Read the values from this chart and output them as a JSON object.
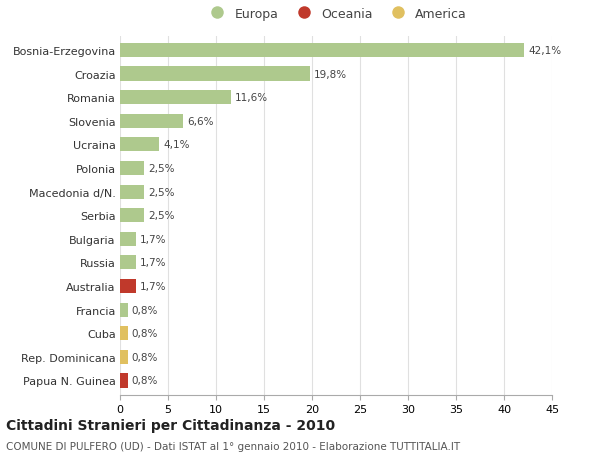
{
  "categories": [
    "Bosnia-Erzegovina",
    "Croazia",
    "Romania",
    "Slovenia",
    "Ucraina",
    "Polonia",
    "Macedonia d/N.",
    "Serbia",
    "Bulgaria",
    "Russia",
    "Australia",
    "Francia",
    "Cuba",
    "Rep. Dominicana",
    "Papua N. Guinea"
  ],
  "values": [
    42.1,
    19.8,
    11.6,
    6.6,
    4.1,
    2.5,
    2.5,
    2.5,
    1.7,
    1.7,
    1.7,
    0.8,
    0.8,
    0.8,
    0.8
  ],
  "labels": [
    "42,1%",
    "19,8%",
    "11,6%",
    "6,6%",
    "4,1%",
    "2,5%",
    "2,5%",
    "2,5%",
    "1,7%",
    "1,7%",
    "1,7%",
    "0,8%",
    "0,8%",
    "0,8%",
    "0,8%"
  ],
  "colors": [
    "#aec98d",
    "#aec98d",
    "#aec98d",
    "#aec98d",
    "#aec98d",
    "#aec98d",
    "#aec98d",
    "#aec98d",
    "#aec98d",
    "#aec98d",
    "#c0392b",
    "#aec98d",
    "#e0c060",
    "#e0c060",
    "#c0392b"
  ],
  "legend": [
    {
      "label": "Europa",
      "color": "#aec98d"
    },
    {
      "label": "Oceania",
      "color": "#c0392b"
    },
    {
      "label": "America",
      "color": "#e0c060"
    }
  ],
  "xlim": [
    0,
    45
  ],
  "xticks": [
    0,
    5,
    10,
    15,
    20,
    25,
    30,
    35,
    40,
    45
  ],
  "title": "Cittadini Stranieri per Cittadinanza - 2010",
  "subtitle": "COMUNE DI PULFERO (UD) - Dati ISTAT al 1° gennaio 2010 - Elaborazione TUTTITALIA.IT",
  "title_fontsize": 10,
  "subtitle_fontsize": 7.5,
  "bg_color": "#ffffff",
  "grid_color": "#e0e0e0",
  "bar_height": 0.6,
  "label_fontsize": 7.5,
  "ytick_fontsize": 8,
  "xtick_fontsize": 8
}
